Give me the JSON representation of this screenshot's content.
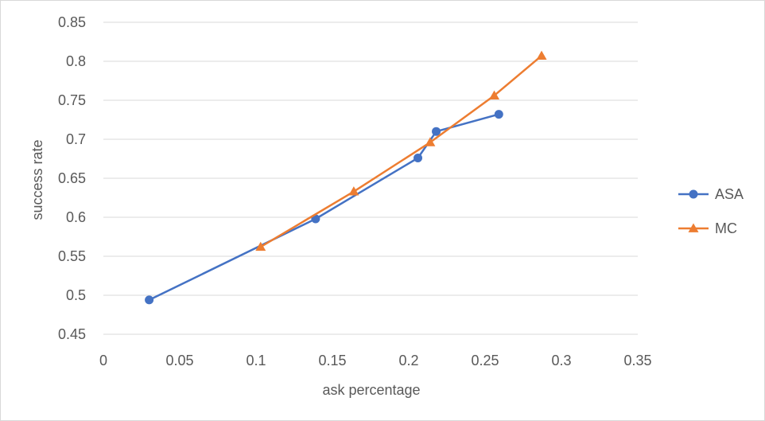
{
  "chart_data": {
    "type": "line",
    "xlabel": "ask percentage",
    "ylabel": "success rate",
    "xlim": [
      0,
      0.35
    ],
    "ylim": [
      0.45,
      0.85
    ],
    "x_ticks": [
      "0",
      "0.05",
      "0.1",
      "0.15",
      "0.2",
      "0.25",
      "0.3",
      "0.35"
    ],
    "y_ticks": [
      "0.45",
      "0.5",
      "0.55",
      "0.6",
      "0.65",
      "0.7",
      "0.75",
      "0.8",
      "0.85"
    ],
    "grid": "horizontal",
    "legend_position": "right",
    "series": [
      {
        "name": "ASA",
        "color": "#4472c4",
        "marker": "circle",
        "points": [
          {
            "x": 0.03,
            "y": 0.494
          },
          {
            "x": 0.139,
            "y": 0.598
          },
          {
            "x": 0.206,
            "y": 0.676
          },
          {
            "x": 0.218,
            "y": 0.71
          },
          {
            "x": 0.259,
            "y": 0.732
          }
        ]
      },
      {
        "name": "MC",
        "color": "#ed7d31",
        "marker": "triangle",
        "points": [
          {
            "x": 0.103,
            "y": 0.562
          },
          {
            "x": 0.164,
            "y": 0.633
          },
          {
            "x": 0.214,
            "y": 0.696
          },
          {
            "x": 0.256,
            "y": 0.756
          },
          {
            "x": 0.287,
            "y": 0.807
          }
        ]
      }
    ]
  }
}
